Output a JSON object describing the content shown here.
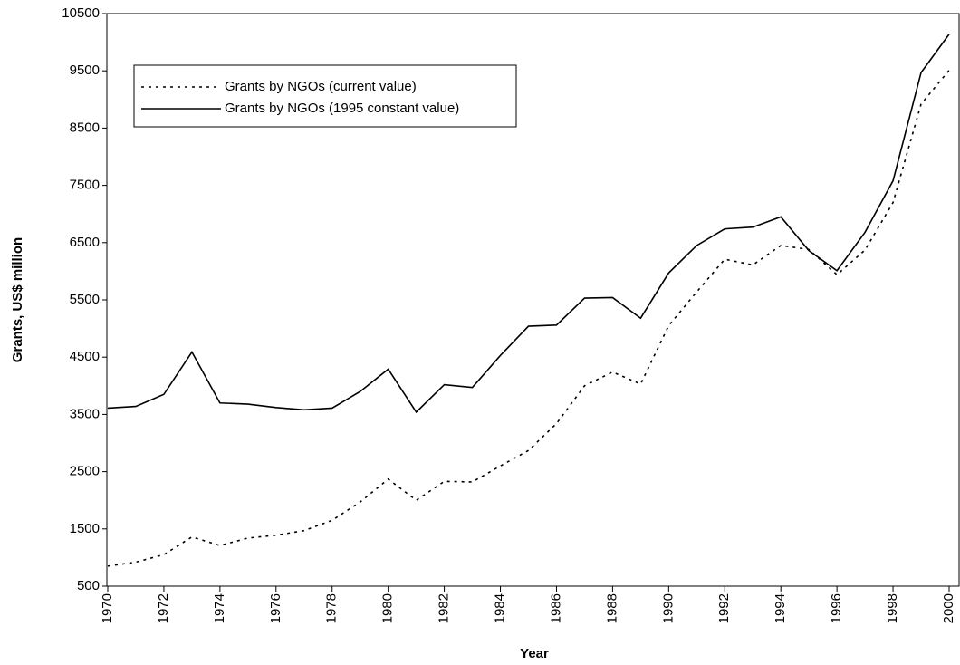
{
  "chart_data": {
    "type": "line",
    "x_label": "Year",
    "y_label": "Grants, US$ million",
    "x": [
      1970,
      1971,
      1972,
      1973,
      1974,
      1975,
      1976,
      1977,
      1978,
      1979,
      1980,
      1981,
      1982,
      1983,
      1984,
      1985,
      1986,
      1987,
      1988,
      1989,
      1990,
      1991,
      1992,
      1993,
      1994,
      1995,
      1996,
      1997,
      1998,
      1999,
      2000
    ],
    "series": [
      {
        "name": "Grants by NGOs (current value)",
        "color": "#000000",
        "dash": "dotted",
        "values": [
          850,
          920,
          1050,
          1360,
          1210,
          1340,
          1390,
          1470,
          1650,
          1970,
          2370,
          2000,
          2330,
          2320,
          2600,
          2870,
          3340,
          4000,
          4240,
          4030,
          5050,
          5640,
          6210,
          6110,
          6450,
          6380,
          5940,
          6370,
          7200,
          8920,
          9510
        ]
      },
      {
        "name": "Grants by NGOs (1995 constant value)",
        "color": "#000000",
        "dash": "solid",
        "values": [
          3610,
          3640,
          3850,
          4590,
          3700,
          3680,
          3620,
          3580,
          3610,
          3900,
          4290,
          3540,
          4020,
          3970,
          4530,
          5040,
          5060,
          5530,
          5540,
          5180,
          5970,
          6450,
          6740,
          6770,
          6950,
          6360,
          6010,
          6680,
          7580,
          9470,
          10140
        ]
      }
    ],
    "xlim": [
      1970,
      2000
    ],
    "xticks": [
      1970,
      1972,
      1974,
      1976,
      1978,
      1980,
      1982,
      1984,
      1986,
      1988,
      1990,
      1992,
      1994,
      1996,
      1998,
      2000
    ],
    "ylim": [
      500,
      10500
    ],
    "yticks": [
      500,
      1500,
      2500,
      3500,
      4500,
      5500,
      6500,
      7500,
      8500,
      9500,
      10500
    ],
    "legend": "upper left"
  }
}
